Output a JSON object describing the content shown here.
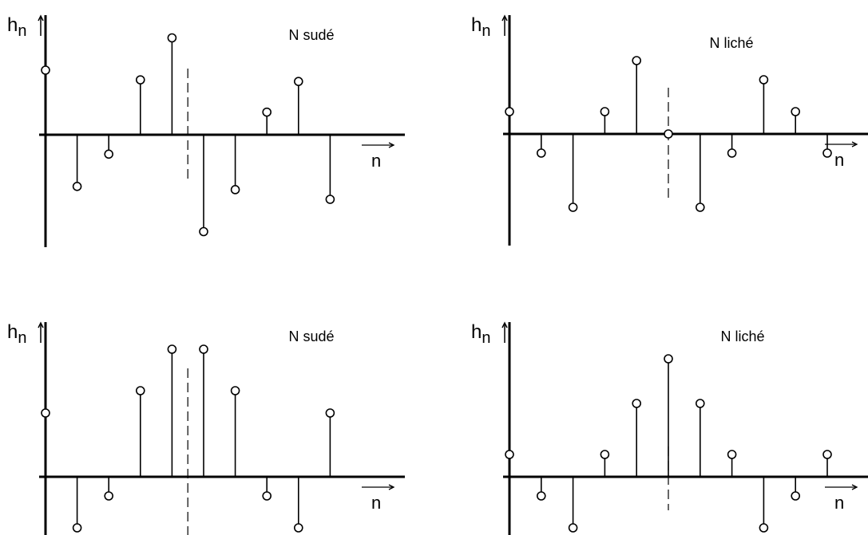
{
  "chart_data": [
    {
      "type": "stem",
      "title": "N sudé",
      "ylabel_main": "h",
      "ylabel_sub": "n",
      "xlabel": "n",
      "x": [
        0,
        1,
        2,
        3,
        4,
        5,
        6,
        7,
        8,
        9
      ],
      "values": [
        2.0,
        -1.6,
        -0.6,
        1.7,
        3.0,
        -3.0,
        -1.7,
        0.7,
        1.65,
        -2.0
      ],
      "symmetry_axis": 4.5
    },
    {
      "type": "stem",
      "title": "N liché",
      "ylabel_main": "h",
      "ylabel_sub": "n",
      "xlabel": "n",
      "x": [
        0,
        1,
        2,
        3,
        4,
        5,
        6,
        7,
        8,
        9,
        10
      ],
      "values": [
        0.7,
        -0.6,
        -2.3,
        0.7,
        2.3,
        0.0,
        -2.3,
        -0.6,
        1.7,
        0.7,
        -0.6
      ],
      "symmetry_axis": 5
    },
    {
      "type": "stem",
      "title": "N sudé",
      "ylabel_main": "h",
      "ylabel_sub": "n",
      "xlabel": "n",
      "x": [
        0,
        1,
        2,
        3,
        4,
        5,
        6,
        7,
        8,
        9
      ],
      "values": [
        2.0,
        -1.6,
        -0.6,
        2.7,
        4.0,
        4.0,
        2.7,
        -0.6,
        -1.6,
        2.0
      ],
      "symmetry_axis": 4.5
    },
    {
      "type": "stem",
      "title": "N liché",
      "ylabel_main": "h",
      "ylabel_sub": "n",
      "xlabel": "n",
      "x": [
        0,
        1,
        2,
        3,
        4,
        5,
        6,
        7,
        8,
        9,
        10
      ],
      "values": [
        0.7,
        -0.6,
        -1.6,
        0.7,
        2.3,
        3.7,
        2.3,
        0.7,
        -1.6,
        -0.6,
        0.7
      ],
      "symmetry_axis": 5
    }
  ]
}
